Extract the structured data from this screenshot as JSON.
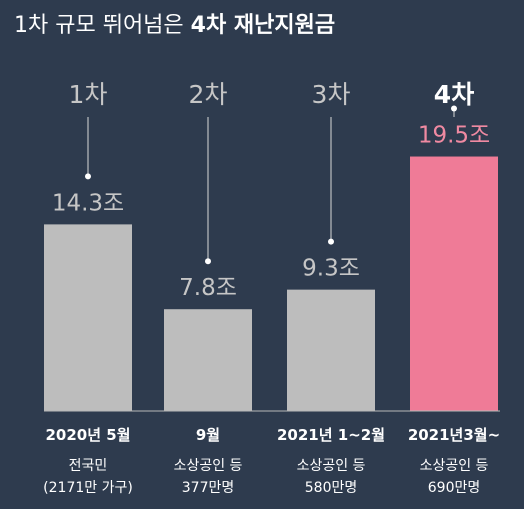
{
  "title": {
    "normal": "1차 규모 뛰어넘은 ",
    "bold": "4차 재난지원금"
  },
  "colors": {
    "background": "#2e3b4e",
    "bar": "#bdbdbd",
    "highlight_bar": "#ef7b97",
    "highlight_value": "#f08aa2",
    "text": "#ffffff",
    "muted": "#c6c6c6",
    "baseline": "#b8b8b8"
  },
  "chart_data": {
    "type": "bar",
    "title": "1차 규모 뛰어넘은 4차 재난지원금",
    "unit": "조",
    "highlight_index": 3,
    "categories": [
      "1차",
      "2차",
      "3차",
      "4차"
    ],
    "values": [
      14.3,
      7.8,
      9.3,
      19.5
    ],
    "value_labels": [
      "14.3조",
      "7.8조",
      "9.3조",
      "19.5조"
    ],
    "dates": [
      "2020년 5월",
      "9월",
      "2021년 1~2월",
      "2021년3월~"
    ],
    "recipients": [
      [
        "전국민",
        "(2171만 가구)"
      ],
      [
        "소상공인 등",
        "377만명"
      ],
      [
        "소상공인 등",
        "580만명"
      ],
      [
        "소상공인 등",
        "690만명"
      ]
    ]
  }
}
